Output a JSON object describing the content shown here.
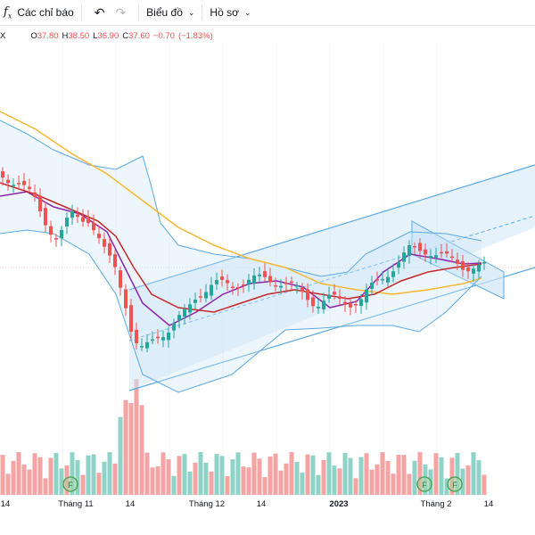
{
  "toolbar": {
    "fx_label": "f",
    "indicators_label": "Các chỉ báo",
    "chart_label": "Biểu đồ",
    "profile_label": "Hồ sơ"
  },
  "ohlc": {
    "symbol": "X",
    "open_key": "O",
    "open": "37.80",
    "high_key": "H",
    "high": "38.50",
    "low_key": "L",
    "low": "36.90",
    "close_key": "C",
    "close": "37.60",
    "change": "−0.70",
    "change_pct": "(−1.83%)"
  },
  "xaxis": {
    "labels": [
      "14",
      "Tháng 11",
      "14",
      "Tháng 12",
      "14",
      "2023",
      "Tháng 2",
      "14"
    ]
  },
  "markers": [
    "F",
    "F",
    "F"
  ],
  "colors": {
    "up": "#26a69a",
    "down": "#ef5350",
    "vol_up": "#8fd3c8",
    "vol_down": "#f5a3a3",
    "ma_slow": "#f7b731",
    "ma_mid": "#8e24aa",
    "ma_fast": "#c62828",
    "band": "#5aa9e6",
    "channel_fill": "#cfe5f8"
  }
}
